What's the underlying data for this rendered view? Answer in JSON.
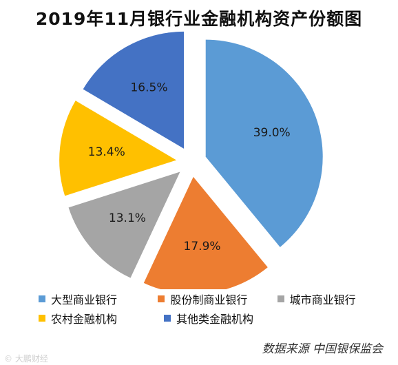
{
  "chart_data": {
    "type": "pie",
    "title": "2019年11月银行业金融机构资产份额图",
    "categories": [
      "大型商业银行",
      "股份制商业银行",
      "城市商业银行",
      "农村金融机构",
      "其他类金融机构"
    ],
    "values": [
      39.0,
      17.9,
      13.1,
      13.4,
      16.5
    ],
    "value_labels": [
      "39.0%",
      "17.9%",
      "13.1%",
      "13.4%",
      "16.5%"
    ],
    "colors": [
      "#5b9bd5",
      "#ed7d31",
      "#a5a5a5",
      "#ffc000",
      "#4472c4"
    ],
    "legend_position": "bottom",
    "exploded": true
  },
  "source": "数据来源 中国银保监会",
  "watermark": "© 大鹏财经"
}
